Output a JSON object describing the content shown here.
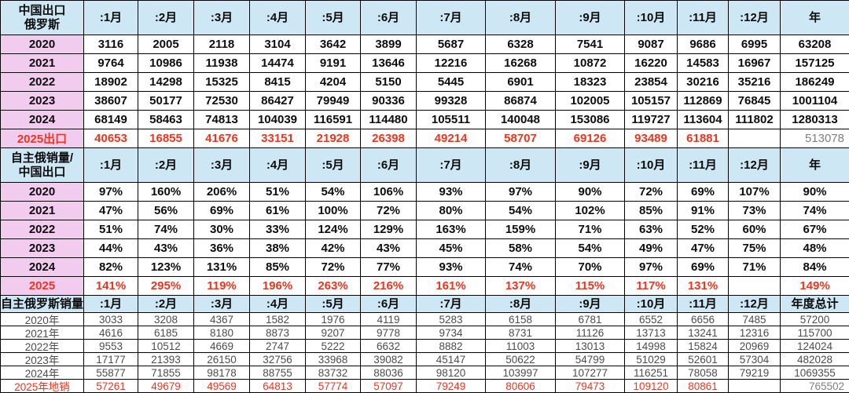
{
  "colors": {
    "header_bg": "#cde7f5",
    "label_bg": "#f2ccee",
    "red": "#f4331d",
    "grid_border": "#000000",
    "gray_total_text": "#808080"
  },
  "table": {
    "sections": [
      {
        "name": "china-exports-to-russia",
        "header_label_lines": [
          "中国出口",
          "俄罗斯"
        ],
        "months": [
          ":1月",
          ":2月",
          ":3月",
          ":4月",
          ":5月",
          ":6月",
          ":7月",
          ":8月",
          ":9月",
          ":10月",
          ":11月",
          ":12月"
        ],
        "year_label": "年",
        "rows": [
          {
            "label": "2020",
            "values": [
              "3116",
              "2005",
              "2118",
              "3104",
              "3642",
              "3899",
              "5687",
              "6328",
              "7541",
              "9087",
              "9686",
              "6995"
            ],
            "total": "63208"
          },
          {
            "label": "2021",
            "values": [
              "9764",
              "10986",
              "11938",
              "14474",
              "9191",
              "13646",
              "12216",
              "16268",
              "10872",
              "16220",
              "14583",
              "16967"
            ],
            "total": "157125"
          },
          {
            "label": "2022",
            "values": [
              "18902",
              "14298",
              "15325",
              "8415",
              "4204",
              "5150",
              "5445",
              "6901",
              "18323",
              "23854",
              "30216",
              "35216"
            ],
            "total": "186249"
          },
          {
            "label": "2023",
            "values": [
              "38607",
              "50177",
              "72530",
              "86427",
              "79949",
              "90336",
              "99328",
              "86874",
              "102005",
              "105157",
              "112869",
              "76845"
            ],
            "total": "1001104"
          },
          {
            "label": "2024",
            "values": [
              "68149",
              "58463",
              "74813",
              "104039",
              "116591",
              "114480",
              "105511",
              "140048",
              "153086",
              "119727",
              "113604",
              "111802"
            ],
            "total": "1280313"
          },
          {
            "label": "2025出口",
            "red": true,
            "values": [
              "40653",
              "16855",
              "41676",
              "33151",
              "21928",
              "26398",
              "49214",
              "58707",
              "69126",
              "93489",
              "61881",
              ""
            ],
            "total": "513078",
            "total_gray": true
          }
        ]
      },
      {
        "name": "self-owned-russia-sales-vs-china-exports",
        "header_label_lines": [
          "自主俄销量/",
          "中国出口"
        ],
        "months": [
          ":1月",
          ":2月",
          ":3月",
          ":4月",
          ":5月",
          ":6月",
          ":7月",
          ":8月",
          ":9月",
          ":10月",
          ":11月",
          ":12月"
        ],
        "year_label": "年",
        "rows": [
          {
            "label": "2020",
            "values": [
              "97%",
              "160%",
              "206%",
              "51%",
              "54%",
              "106%",
              "93%",
              "97%",
              "90%",
              "72%",
              "69%",
              "107%"
            ],
            "total": "90%"
          },
          {
            "label": "2021",
            "values": [
              "47%",
              "56%",
              "69%",
              "61%",
              "100%",
              "72%",
              "80%",
              "54%",
              "102%",
              "85%",
              "91%",
              "73%"
            ],
            "total": "74%"
          },
          {
            "label": "2022",
            "values": [
              "51%",
              "74%",
              "30%",
              "33%",
              "124%",
              "129%",
              "163%",
              "159%",
              "71%",
              "63%",
              "52%",
              "60%"
            ],
            "total": "67%"
          },
          {
            "label": "2023",
            "values": [
              "44%",
              "43%",
              "36%",
              "38%",
              "42%",
              "43%",
              "45%",
              "58%",
              "54%",
              "49%",
              "47%",
              "75%"
            ],
            "total": "48%"
          },
          {
            "label": "2024",
            "values": [
              "82%",
              "123%",
              "131%",
              "85%",
              "72%",
              "77%",
              "93%",
              "74%",
              "70%",
              "97%",
              "69%",
              "71%"
            ],
            "total": "84%"
          },
          {
            "label": "2025",
            "red": true,
            "values": [
              "141%",
              "295%",
              "119%",
              "196%",
              "263%",
              "216%",
              "161%",
              "137%",
              "115%",
              "117%",
              "131%",
              ""
            ],
            "total": "149%"
          }
        ]
      },
      {
        "name": "self-owned-russia-sales",
        "header_label_lines": [
          "自主俄罗斯销量"
        ],
        "months": [
          ":1月",
          ":2月",
          ":3月",
          ":4月",
          ":5月",
          ":6月",
          ":7月",
          ":8月",
          ":9月",
          ":10月",
          ":11月",
          ":12月"
        ],
        "year_label": "年度总计",
        "rows": [
          {
            "label": "2020年",
            "values": [
              "3033",
              "3208",
              "4367",
              "1582",
              "1976",
              "4119",
              "5283",
              "6158",
              "6781",
              "6552",
              "6656",
              "7485"
            ],
            "total": "57200"
          },
          {
            "label": "2021年",
            "values": [
              "4616",
              "6185",
              "8180",
              "8873",
              "9207",
              "9778",
              "9734",
              "8731",
              "11126",
              "13713",
              "13241",
              "12316"
            ],
            "total": "115700"
          },
          {
            "label": "2022年",
            "values": [
              "9553",
              "10512",
              "4669",
              "2747",
              "5222",
              "6632",
              "8882",
              "11003",
              "13013",
              "14998",
              "15824",
              "20969"
            ],
            "total": "124024"
          },
          {
            "label": "2023年",
            "values": [
              "17177",
              "21393",
              "26150",
              "32756",
              "33968",
              "39082",
              "45147",
              "50622",
              "54799",
              "51029",
              "52601",
              "57304"
            ],
            "total": "482028"
          },
          {
            "label": "2024年",
            "values": [
              "55877",
              "71855",
              "98178",
              "88755",
              "83732",
              "88036",
              "98120",
              "103997",
              "107277",
              "116251",
              "78058",
              "79219"
            ],
            "total": "1069355"
          },
          {
            "label": "2025年地销",
            "red": true,
            "values": [
              "57261",
              "49679",
              "49569",
              "64813",
              "57774",
              "57097",
              "79249",
              "80606",
              "79473",
              "109120",
              "80861",
              ""
            ],
            "total": "765502",
            "total_gray": true
          }
        ]
      }
    ]
  }
}
